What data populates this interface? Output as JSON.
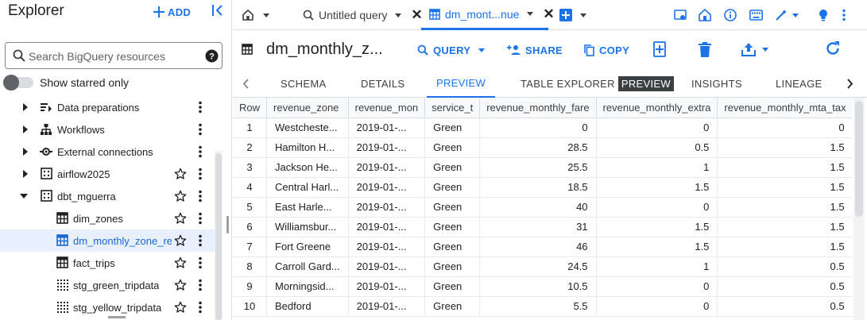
{
  "explorer": {
    "title": "Explorer",
    "add_label": "ADD",
    "search_placeholder": "Search BigQuery resources",
    "starred_label": "Show starred only",
    "tree": [
      {
        "label": "Data preparations",
        "icon": "data-preparation-icon",
        "expandable": true,
        "starred": null
      },
      {
        "label": "Workflows",
        "icon": "workflow-icon",
        "expandable": true,
        "starred": null
      },
      {
        "label": "External connections",
        "icon": "external-connection-icon",
        "expandable": true,
        "starred": null
      },
      {
        "label": "airflow2025",
        "icon": "dataset-icon",
        "expandable": true,
        "starred": false
      },
      {
        "label": "dbt_mguerra",
        "icon": "dataset-icon",
        "expandable": true,
        "expanded": true,
        "starred": false
      },
      {
        "label": "dim_zones",
        "icon": "table-icon",
        "starred": false
      },
      {
        "label": "dm_monthly_zone_re...",
        "icon": "table-icon",
        "starred": false,
        "selected": true
      },
      {
        "label": "fact_trips",
        "icon": "table-icon",
        "starred": false
      },
      {
        "label": "stg_green_tripdata",
        "icon": "view-icon",
        "starred": false
      },
      {
        "label": "stg_yellow_tripdata",
        "icon": "view-icon",
        "starred": false
      }
    ]
  },
  "tabs": {
    "untitled_query": "Untitled query",
    "active_tab": "dm_mont...nue"
  },
  "table_header": {
    "title": "dm_monthly_z...",
    "query_label": "QUERY",
    "share_label": "SHARE",
    "copy_label": "COPY"
  },
  "subtabs": {
    "schema": "SCHEMA",
    "details": "DETAILS",
    "preview": "PREVIEW",
    "table_explorer": "TABLE EXPLORER",
    "table_explorer_badge": "PREVIEW",
    "insights": "INSIGHTS",
    "lineage": "LINEAGE"
  },
  "grid": {
    "columns": [
      "Row",
      "revenue_zone",
      "revenue_mon",
      "service_t",
      "revenue_monthly_fare",
      "revenue_monthly_extra",
      "revenue_monthly_mta_tax"
    ],
    "rows": [
      [
        "1",
        "Westcheste...",
        "2019-01-...",
        "Green",
        "0",
        "0",
        "0"
      ],
      [
        "2",
        "Hamilton H...",
        "2019-01-...",
        "Green",
        "28.5",
        "0.5",
        "1.5"
      ],
      [
        "3",
        "Jackson He...",
        "2019-01-...",
        "Green",
        "25.5",
        "1",
        "1.5"
      ],
      [
        "4",
        "Central Harl...",
        "2019-01-...",
        "Green",
        "18.5",
        "1.5",
        "1.5"
      ],
      [
        "5",
        "East Harle...",
        "2019-01-...",
        "Green",
        "40",
        "0",
        "1.5"
      ],
      [
        "6",
        "Williamsbur...",
        "2019-01-...",
        "Green",
        "31",
        "1.5",
        "1.5"
      ],
      [
        "7",
        "Fort Greene",
        "2019-01-...",
        "Green",
        "46",
        "1.5",
        "1.5"
      ],
      [
        "8",
        "Carroll Gard...",
        "2019-01-...",
        "Green",
        "24.5",
        "1",
        "0.5"
      ],
      [
        "9",
        "Morningsid...",
        "2019-01-...",
        "Green",
        "10.5",
        "0",
        "0.5"
      ],
      [
        "10",
        "Bedford",
        "2019-01-...",
        "Green",
        "5.5",
        "0",
        "0.5"
      ]
    ]
  },
  "colors": {
    "accent": "#1a73e8",
    "selected_bg": "#e8f0fe",
    "text": "#202124"
  }
}
